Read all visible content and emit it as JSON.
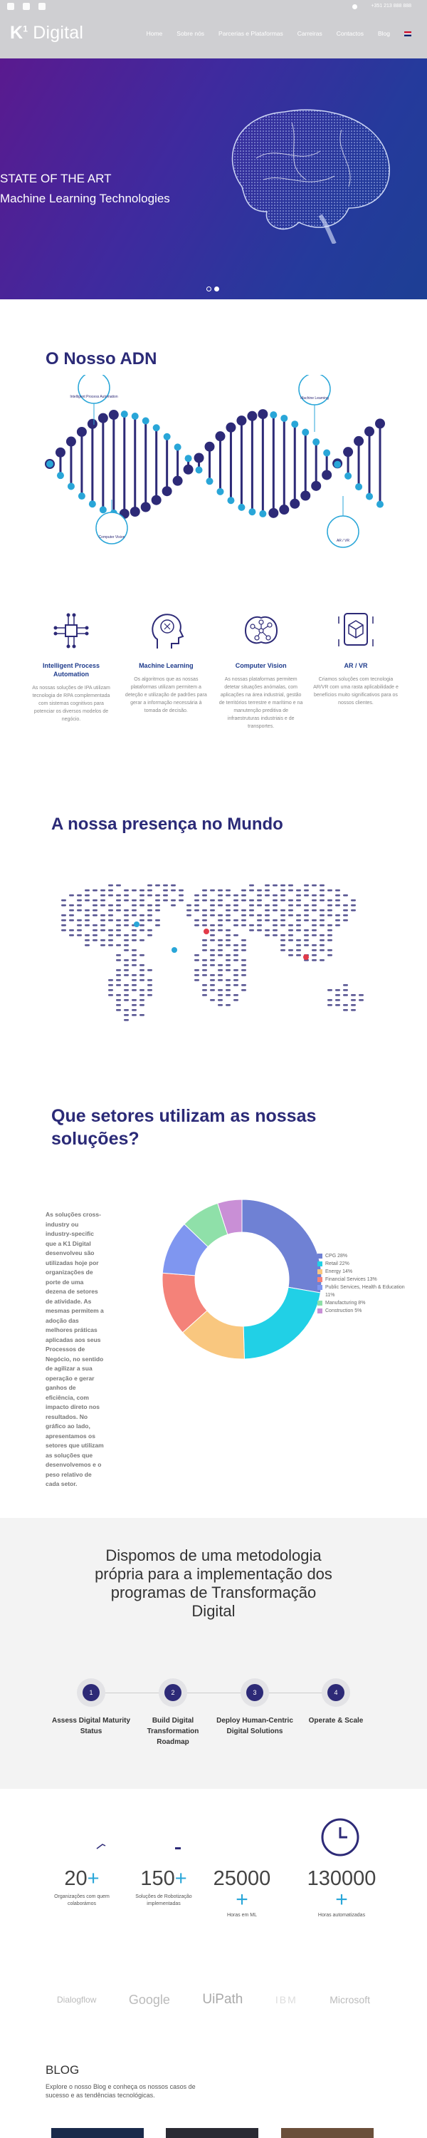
{
  "topbar": {
    "phone": "+351 213 888 888"
  },
  "nav": {
    "logo_k": "K",
    "logo_mark": "1",
    "logo_text": "Digital",
    "menu": [
      "Home",
      "Sobre nós",
      "Parcerias e Plataformas",
      "Carreiras",
      "Contactos",
      "Blog"
    ]
  },
  "hero": {
    "line1": "STATE OF THE ART",
    "line2": "Machine Learning Technologies"
  },
  "dna": {
    "title": "O Nosso ADN",
    "labels": [
      "Intelligent Process Automation",
      "Machine Learning",
      "Computer Vision",
      "AR / VR"
    ]
  },
  "features": [
    {
      "title": "Intelligent Process Automation",
      "desc": "As nossas soluções de IPA utilizam tecnologia de RPA complementada com sistemas cognitivos para potenciar os diversos modelos de negócio."
    },
    {
      "title": "Machine Learning",
      "desc": "Os algoritmos que as nossas plataformas utilizam permitem a deteção e utilização de padrões para gerar a informação necessária à tomada de decisão."
    },
    {
      "title": "Computer Vision",
      "desc": "As nossas plataformas permitem detetar situações anómalas, com aplicações na área industrial, gestão de territórios terrestre e marítimo e na manutenção preditiva de infraestruturas industriais e de transportes."
    },
    {
      "title": "AR / VR",
      "desc": "Criamos soluções com tecnologia AR/VR com uma rasta aplicabilidade e benefícios muito significativos para os nossos clientes."
    }
  ],
  "presence": {
    "title": "A nossa presença no Mundo"
  },
  "sectors": {
    "title_line1": "Que setores utilizam as nossas",
    "title_line2": "soluções?",
    "text": "As soluções cross-industry ou industry-specific que a K1 Digital desenvolveu são utilizadas hoje por organizações de porte de uma dezena de setores de atividade. As mesmas permitem a adoção das melhores práticas aplicadas aos seus Processos de Negócio, no sentido de agilizar a sua operação e gerar ganhos de eficiência, com impacto direto nos resultados. No gráfico ao lado, apresentamos os setores que utilizam as soluções que desenvolvemos e o peso relativo de cada setor."
  },
  "chart_data": {
    "type": "pie",
    "categories": [
      "CPG",
      "Retail",
      "Energy",
      "Financial Services",
      "Public Services, Health & Education",
      "Manufacturing",
      "Construction"
    ],
    "values": [
      28,
      22,
      14,
      13,
      11,
      8,
      5
    ],
    "legend": [
      "CPG 28%",
      "Retail 22%",
      "Energy 14%",
      "Financial Services 13%",
      "Public Services, Health & Education 11%",
      "Manufacturing 8%",
      "Construction 5%"
    ],
    "colors": [
      "#6f81d4",
      "#21d0e6",
      "#f9c77f",
      "#f48279",
      "#7f96f0",
      "#8fe0a9",
      "#c98fd6"
    ],
    "legend_position": "right"
  },
  "method": {
    "title": "Dispomos de uma metodologia própria para a implementação dos programas de Transformação Digital",
    "steps": [
      {
        "num": "1",
        "label": "Assess Digital Maturity Status"
      },
      {
        "num": "2",
        "label": "Build Digital Transformation Roadmap"
      },
      {
        "num": "3",
        "label": "Deploy Human-Centric Digital Solutions"
      },
      {
        "num": "4",
        "label": "Operate & Scale"
      }
    ]
  },
  "stats": [
    {
      "value": "20",
      "plus": "+",
      "label": "Organizações com quem colaborámos"
    },
    {
      "value": "150",
      "plus": "+",
      "label": "Soluções de Robotização implementadas"
    },
    {
      "value": "25000",
      "plus": "+",
      "label": "Horas em ML"
    },
    {
      "value": "130000",
      "plus": "+",
      "label": "Horas automatizadas"
    }
  ],
  "partners": [
    "Dialogflow",
    "Google",
    "UiPath",
    "IBM",
    "Microsoft"
  ],
  "blog": {
    "title": "BLOG",
    "subtitle": "Explore o nosso Blog e conheça os nossos casos de sucesso e as tendências tecnológicas."
  }
}
